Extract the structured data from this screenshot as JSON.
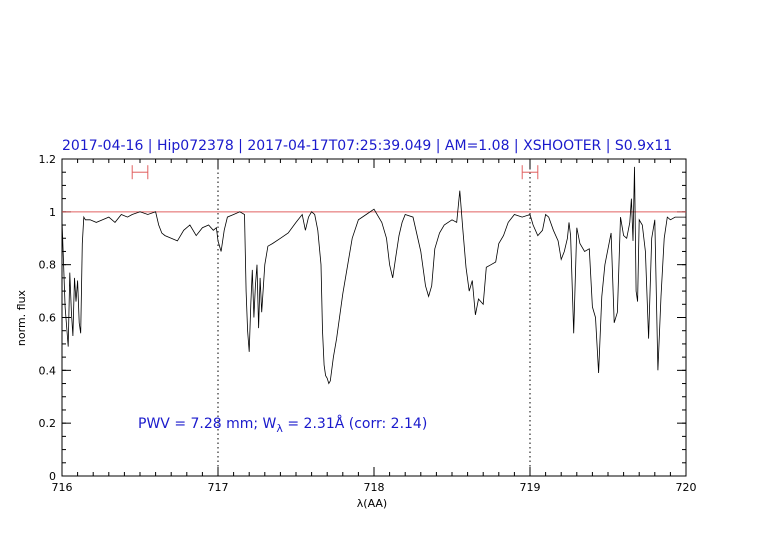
{
  "chart_data": {
    "type": "line",
    "title": "2017-04-16 | Hip072378 | 2017-04-17T07:25:39.049 | AM=1.08 | XSHOOTER | S0.9x11",
    "xlabel": "λ(AA)",
    "ylabel": "norm. flux",
    "xlim": [
      716,
      720
    ],
    "ylim": [
      0,
      1.2
    ],
    "x_ticks": [
      "716",
      "717",
      "718",
      "719",
      "720"
    ],
    "y_ticks": [
      "0",
      "0.2",
      "0.4",
      "0.6",
      "0.8",
      "1",
      "1.2"
    ],
    "reference_line": {
      "y": 1.0,
      "color": "#e06060"
    },
    "vertical_markers": [
      717.0,
      719.0
    ],
    "range_markers": [
      {
        "x": [
          716.45,
          716.55
        ],
        "y": 1.15
      },
      {
        "x": [
          718.95,
          719.05
        ],
        "y": 1.15
      }
    ],
    "annotation": {
      "prefix": "PWV = 7.28 mm; W",
      "subscript": "λ",
      "suffix": " = 2.31Å (corr: 2.14)"
    },
    "series": [
      {
        "color": "#000000",
        "x": [
          716.0,
          716.02,
          716.04,
          716.05,
          716.06,
          716.07,
          716.08,
          716.09,
          716.1,
          716.11,
          716.12,
          716.13,
          716.14,
          716.15,
          716.18,
          716.22,
          716.26,
          716.3,
          716.34,
          716.38,
          716.42,
          716.45,
          716.5,
          716.55,
          716.6,
          716.62,
          716.64,
          716.66,
          716.7,
          716.74,
          716.78,
          716.82,
          716.86,
          716.9,
          716.94,
          716.97,
          716.99,
          717.0,
          717.02,
          717.04,
          717.06,
          717.1,
          717.14,
          717.17,
          717.18,
          717.19,
          717.2,
          717.21,
          717.22,
          717.23,
          717.24,
          717.25,
          717.26,
          717.27,
          717.28,
          717.3,
          717.32,
          717.35,
          717.4,
          717.45,
          717.5,
          717.54,
          717.56,
          717.58,
          717.6,
          717.62,
          717.64,
          717.66,
          717.67,
          717.68,
          717.69,
          717.7,
          717.71,
          717.72,
          717.74,
          717.76,
          717.8,
          717.86,
          717.9,
          717.95,
          718.0,
          718.05,
          718.08,
          718.1,
          718.12,
          718.14,
          718.16,
          718.18,
          718.2,
          718.25,
          718.3,
          718.33,
          718.35,
          718.37,
          718.39,
          718.42,
          718.45,
          718.5,
          718.53,
          718.55,
          718.57,
          718.59,
          718.61,
          718.63,
          718.65,
          718.67,
          718.7,
          718.72,
          718.75,
          718.78,
          718.8,
          718.83,
          718.86,
          718.9,
          718.95,
          719.0,
          719.02,
          719.05,
          719.08,
          719.1,
          719.12,
          719.15,
          719.18,
          719.2,
          719.22,
          719.24,
          719.25,
          719.26,
          719.28,
          719.3,
          719.32,
          719.35,
          719.38,
          719.4,
          719.42,
          719.44,
          719.46,
          719.48,
          719.5,
          719.52,
          719.54,
          719.56,
          719.58,
          719.6,
          719.62,
          719.64,
          719.65,
          719.66,
          719.67,
          719.68,
          719.69,
          719.7,
          719.72,
          719.74,
          719.76,
          719.78,
          719.8,
          719.82,
          719.84,
          719.86,
          719.88,
          719.9,
          719.93,
          719.96,
          720.0
        ],
        "y": [
          0.97,
          0.64,
          0.49,
          0.77,
          0.62,
          0.53,
          0.75,
          0.66,
          0.74,
          0.58,
          0.54,
          0.88,
          0.98,
          0.97,
          0.97,
          0.96,
          0.97,
          0.98,
          0.96,
          0.99,
          0.98,
          0.99,
          1.0,
          0.99,
          1.0,
          0.95,
          0.92,
          0.91,
          0.9,
          0.89,
          0.93,
          0.95,
          0.91,
          0.94,
          0.95,
          0.93,
          0.94,
          0.89,
          0.85,
          0.93,
          0.98,
          0.99,
          1.0,
          0.99,
          0.7,
          0.55,
          0.47,
          0.65,
          0.78,
          0.6,
          0.72,
          0.8,
          0.56,
          0.75,
          0.62,
          0.8,
          0.87,
          0.88,
          0.9,
          0.92,
          0.96,
          0.99,
          0.93,
          0.98,
          1.0,
          0.99,
          0.93,
          0.8,
          0.55,
          0.42,
          0.38,
          0.37,
          0.35,
          0.36,
          0.45,
          0.52,
          0.69,
          0.9,
          0.97,
          0.99,
          1.01,
          0.96,
          0.9,
          0.8,
          0.75,
          0.83,
          0.91,
          0.96,
          0.99,
          0.98,
          0.85,
          0.72,
          0.68,
          0.72,
          0.86,
          0.92,
          0.95,
          0.97,
          0.96,
          1.08,
          0.93,
          0.79,
          0.7,
          0.74,
          0.61,
          0.67,
          0.65,
          0.79,
          0.8,
          0.81,
          0.88,
          0.91,
          0.96,
          0.99,
          0.98,
          0.99,
          0.95,
          0.91,
          0.93,
          0.99,
          0.98,
          0.93,
          0.89,
          0.82,
          0.85,
          0.9,
          0.96,
          0.91,
          0.54,
          0.94,
          0.88,
          0.85,
          0.86,
          0.64,
          0.6,
          0.39,
          0.68,
          0.8,
          0.86,
          0.92,
          0.58,
          0.62,
          0.98,
          0.91,
          0.9,
          0.96,
          1.05,
          0.89,
          1.17,
          0.7,
          0.66,
          0.97,
          0.95,
          0.85,
          0.52,
          0.9,
          0.97,
          0.4,
          0.68,
          0.9,
          0.98,
          0.97,
          0.98,
          0.98,
          0.98
        ]
      }
    ]
  }
}
